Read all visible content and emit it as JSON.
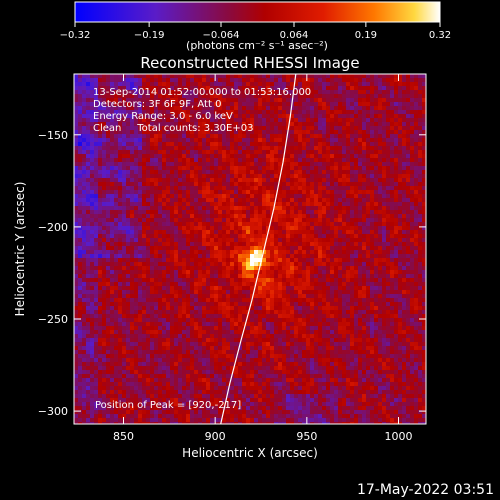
{
  "chart_data": {
    "type": "heatmap",
    "title": "Reconstructed RHESSI Image",
    "xlabel": "Heliocentric X (arcsec)",
    "ylabel": "Heliocentric Y (arcsec)",
    "xlim": [
      823,
      1015
    ],
    "ylim": [
      -307,
      -117
    ],
    "xticks": [
      850,
      900,
      950,
      1000
    ],
    "xtick_labels": [
      "850",
      "900",
      "950",
      "1000"
    ],
    "yticks": [
      -150,
      -200,
      -250,
      -300
    ],
    "ytick_labels": [
      "−150",
      "−200",
      "−250",
      "−300"
    ],
    "colorbar": {
      "ticks": [
        -0.32,
        -0.19,
        -0.064,
        0.064,
        0.19,
        0.32
      ],
      "tick_labels": [
        "−0.32",
        "−0.19",
        "−0.064",
        "0.064",
        "0.19",
        "0.32"
      ],
      "range": [
        -0.32,
        0.32
      ],
      "colormap": "blue-purple-red-yellow-white",
      "units_label": "(photons cm⁻² s⁻¹ asec⁻²)"
    },
    "annotations": [
      "13-Sep-2014 01:52:00.000 to 01:53:16.000",
      "Detectors: 3F 6F 9F, Att 0",
      "Energy Range: 3.0 - 6.0 keV",
      "Clean     Total counts: 3.30E+03"
    ],
    "peak_label": "Position of Peak = [920,-217]",
    "peak": {
      "x": 920,
      "y": -217
    },
    "secondary_source": {
      "x": 929,
      "y": -230
    },
    "limb_curve": {
      "x": [
        944,
        941,
        937,
        932,
        926,
        920,
        914,
        908,
        903
      ],
      "y": [
        -117,
        -140,
        -165,
        -190,
        -215,
        -240,
        -262,
        -285,
        -307
      ]
    },
    "grid": false
  },
  "footer": {
    "date_stamp": "17-May-2022 03:51"
  }
}
